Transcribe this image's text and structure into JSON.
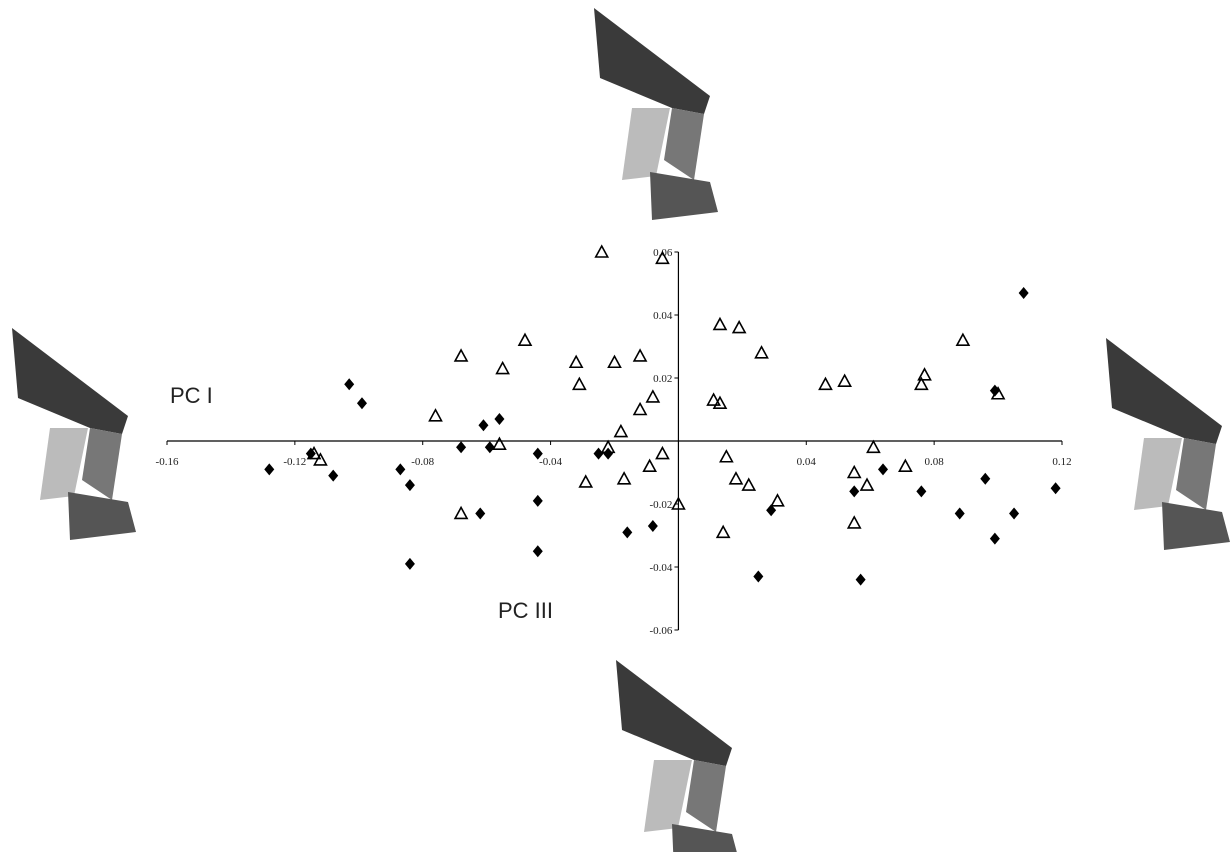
{
  "chart_data": {
    "type": "scatter",
    "xlabel": "PC I",
    "ylabel": "PC III",
    "xlim": [
      -0.16,
      0.12
    ],
    "ylim": [
      -0.06,
      0.06
    ],
    "xticks": [
      -0.16,
      -0.12,
      -0.08,
      -0.04,
      0.04,
      0.08,
      0.12
    ],
    "yticks": [
      0.06,
      0.04,
      0.02,
      -0.02,
      -0.04,
      -0.06
    ],
    "series": [
      {
        "marker": "triangle",
        "color": "#000000",
        "x": [
          -0.024,
          -0.005,
          0.013,
          0.019,
          -0.048,
          -0.068,
          -0.055,
          -0.032,
          -0.02,
          -0.012,
          0.026,
          0.089,
          0.046,
          0.052,
          0.077,
          0.076,
          -0.031,
          -0.008,
          -0.012,
          -0.076,
          0.1,
          0.011,
          0.013,
          -0.018,
          -0.022,
          -0.056,
          0.015,
          -0.009,
          -0.005,
          0.061,
          0.071,
          0.055,
          0.059,
          -0.029,
          -0.017,
          0.018,
          0.022,
          0.031,
          0.0,
          -0.068,
          0.014,
          0.055,
          -0.114,
          -0.112
        ],
        "values": [
          0.06,
          0.058,
          0.037,
          0.036,
          0.032,
          0.027,
          0.023,
          0.025,
          0.025,
          0.027,
          0.028,
          0.032,
          0.018,
          0.019,
          0.021,
          0.018,
          0.018,
          0.014,
          0.01,
          0.008,
          0.015,
          0.013,
          0.012,
          0.003,
          -0.002,
          -0.001,
          -0.005,
          -0.008,
          -0.004,
          -0.002,
          -0.008,
          -0.01,
          -0.014,
          -0.013,
          -0.012,
          -0.012,
          -0.014,
          -0.019,
          -0.02,
          -0.023,
          -0.029,
          -0.026,
          -0.004,
          -0.006
        ]
      },
      {
        "marker": "diamond",
        "color": "#000000",
        "x": [
          -0.103,
          -0.099,
          0.108,
          -0.061,
          -0.056,
          -0.068,
          -0.059,
          -0.044,
          -0.025,
          -0.022,
          -0.128,
          -0.108,
          -0.087,
          -0.084,
          -0.062,
          -0.044,
          -0.044,
          -0.084,
          -0.016,
          -0.008,
          0.029,
          0.025,
          0.057,
          0.055,
          0.064,
          0.076,
          0.096,
          0.088,
          0.105,
          0.099,
          0.118,
          0.099,
          -0.115
        ],
        "values": [
          0.018,
          0.012,
          0.047,
          0.005,
          0.007,
          -0.002,
          -0.002,
          -0.004,
          -0.004,
          -0.004,
          -0.009,
          -0.011,
          -0.009,
          -0.014,
          -0.023,
          -0.019,
          -0.035,
          -0.039,
          -0.029,
          -0.027,
          -0.022,
          -0.043,
          -0.044,
          -0.016,
          -0.009,
          -0.016,
          -0.012,
          -0.023,
          -0.023,
          -0.031,
          -0.015,
          0.016,
          -0.004
        ]
      }
    ]
  }
}
